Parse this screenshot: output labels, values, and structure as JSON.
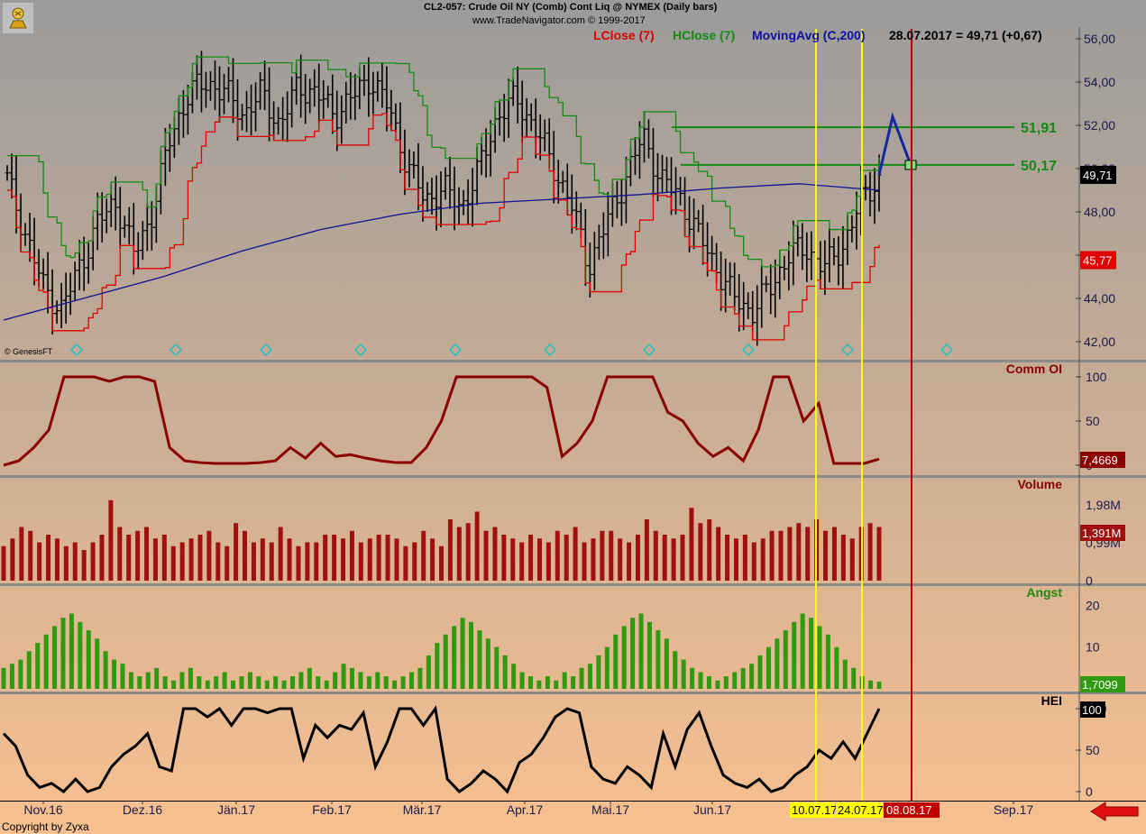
{
  "header": {
    "title": "CL2-057:  Crude Oil NY (Comb) Cont Liq @ NYMEX  (Daily bars)",
    "copyright": "www.TradeNavigator.com © 1999-2017",
    "quote": "28.07.2017 = 49,71 (+0,67)"
  },
  "legend": {
    "lclose": "LClose (7)",
    "hclose": "HClose (7)",
    "ma": "MovingAvg (C,200)"
  },
  "footer": {
    "credit": "Copyright by Zyxa",
    "genesis": "© GenesisFT"
  },
  "colors": {
    "background_top": "#9b9b9b",
    "background_bottom": "#f8c090",
    "price_bars": "#000000",
    "lclose": "#e00000",
    "hclose": "#138a13",
    "moving_avg": "#101090",
    "comm_oi": "#8b0000",
    "volume": "#a01010",
    "angst": "#2f9a10",
    "hei": "#000000",
    "marker_line": "#ffff00",
    "target_line": "#c00000",
    "projection": "#1428a0"
  },
  "chart_data": [
    {
      "type": "ohlc",
      "panel": "price",
      "ylim": [
        41.5,
        57
      ],
      "y_ticks": [
        "56,00",
        "54,00",
        "52,00",
        "50,00",
        "48,00",
        "46,00",
        "44,00",
        "42,00"
      ],
      "x_tick_labels": [
        "Nov.16",
        "Dez.16",
        "Jän.17",
        "Feb.17",
        "Mär.17",
        "Apr.17",
        "Mai.17",
        "Jun.17",
        "Sep.17"
      ],
      "date_markers": [
        "10.07.17",
        "24.07.17"
      ],
      "target_date": "08.08.17",
      "annotations": [
        {
          "label": "51,91",
          "value": 51.91
        },
        {
          "label": "50,17",
          "value": 50.17
        }
      ],
      "last_value_labels": {
        "close": "49,71",
        "lclose": "45,77"
      },
      "close_anchors": [
        49.5,
        47,
        44.5,
        43.5,
        45.5,
        47.5,
        48.5,
        46,
        48,
        51.5,
        53.5,
        54,
        53.5,
        52.5,
        53.5,
        52,
        53.8,
        53.5,
        52.5,
        53.3,
        54.2,
        52.8,
        50.2,
        48.5,
        49.1,
        48.2,
        50,
        52.5,
        53.2,
        52,
        50.2,
        48.5,
        45.5,
        47.5,
        49.5,
        51.5,
        49.5,
        48.7,
        47,
        45.5,
        44,
        43.4,
        44.5,
        46,
        46.3,
        45.4,
        46.4,
        48.5,
        49.7
      ],
      "series": [
        {
          "name": "LClose (7)",
          "color": "#e00000"
        },
        {
          "name": "HClose (7)",
          "color": "#138a13"
        },
        {
          "name": "MovingAvg (C,200)",
          "color": "#101090",
          "anchors": [
            43,
            44,
            45,
            46.2,
            47.2,
            47.9,
            48.4,
            48.6,
            48.8,
            49.1,
            49.3,
            49.0
          ]
        }
      ]
    },
    {
      "type": "line",
      "panel": "comm_oi",
      "name": "Comm OI",
      "ylim": [
        0,
        100
      ],
      "y_ticks": [
        "100",
        "50",
        "0"
      ],
      "last_value": "7,4669",
      "values": [
        0,
        5,
        20,
        40,
        100,
        100,
        100,
        95,
        100,
        100,
        95,
        20,
        5,
        3,
        2,
        2,
        2,
        3,
        5,
        20,
        8,
        25,
        10,
        12,
        8,
        5,
        3,
        3,
        20,
        50,
        100,
        100,
        100,
        100,
        100,
        100,
        88,
        10,
        25,
        50,
        100,
        100,
        100,
        100,
        60,
        50,
        25,
        10,
        20,
        5,
        40,
        100,
        100,
        50,
        70,
        2,
        2,
        2,
        7
      ]
    },
    {
      "type": "bar",
      "panel": "volume",
      "name": "Volume",
      "ylim": [
        0,
        2.4
      ],
      "y_ticks": [
        "1,98M",
        "0,99M",
        "0"
      ],
      "last_value": "1,391M",
      "values": [
        0.9,
        1.1,
        1.4,
        1.3,
        1.0,
        1.2,
        1.1,
        0.9,
        1.0,
        0.8,
        1.0,
        1.2,
        2.1,
        1.4,
        1.2,
        1.3,
        1.4,
        1.1,
        1.2,
        0.9,
        1.0,
        1.1,
        1.2,
        1.3,
        1.0,
        0.9,
        1.5,
        1.3,
        1.0,
        1.1,
        1.0,
        1.4,
        1.1,
        0.9,
        1.0,
        1.0,
        1.2,
        1.2,
        1.1,
        1.3,
        1.0,
        1.1,
        1.2,
        1.2,
        1.1,
        0.9,
        1.0,
        1.3,
        1.1,
        0.9,
        1.6,
        1.4,
        1.5,
        1.8,
        1.3,
        1.4,
        1.2,
        1.1,
        1.0,
        1.2,
        1.1,
        1.0,
        1.3,
        1.2,
        1.4,
        1.0,
        1.1,
        1.3,
        1.3,
        1.1,
        1.0,
        1.2,
        1.6,
        1.3,
        1.2,
        1.1,
        1.2,
        1.9,
        1.5,
        1.6,
        1.4,
        1.2,
        1.1,
        1.2,
        1.0,
        1.1,
        1.3,
        1.3,
        1.4,
        1.5,
        1.4,
        1.6,
        1.3,
        1.4,
        1.2,
        1.1,
        1.4,
        1.5,
        1.4
      ]
    },
    {
      "type": "bar",
      "panel": "angst",
      "name": "Angst",
      "ylim": [
        0,
        22
      ],
      "y_ticks": [
        "20",
        "10"
      ],
      "last_value": "1,7099",
      "values": [
        5,
        6,
        7,
        9,
        11,
        13,
        15,
        17,
        18,
        16,
        14,
        12,
        9,
        7,
        6,
        4,
        3,
        4,
        5,
        3,
        2,
        4,
        5,
        3,
        2,
        3,
        4,
        2,
        3,
        4,
        3,
        2,
        3,
        2,
        3,
        4,
        5,
        3,
        2,
        4,
        6,
        5,
        4,
        3,
        4,
        3,
        2,
        3,
        4,
        5,
        8,
        11,
        13,
        15,
        17,
        16,
        14,
        12,
        10,
        8,
        6,
        4,
        3,
        2,
        3,
        2,
        4,
        3,
        5,
        6,
        8,
        10,
        13,
        15,
        17,
        18,
        16,
        14,
        12,
        9,
        7,
        5,
        4,
        3,
        2,
        3,
        4,
        5,
        6,
        8,
        10,
        12,
        14,
        16,
        18,
        17,
        15,
        13,
        10,
        7,
        5,
        3,
        2,
        1.7
      ]
    },
    {
      "type": "line",
      "panel": "hei",
      "name": "HEI",
      "ylim": [
        0,
        100
      ],
      "y_ticks": [
        "100",
        "50",
        "0"
      ],
      "last_value": "100",
      "values": [
        70,
        55,
        20,
        5,
        10,
        0,
        15,
        0,
        5,
        30,
        45,
        55,
        70,
        30,
        25,
        100,
        100,
        90,
        100,
        80,
        100,
        100,
        95,
        100,
        100,
        40,
        80,
        65,
        80,
        75,
        95,
        30,
        60,
        100,
        100,
        80,
        100,
        15,
        0,
        10,
        25,
        15,
        0,
        35,
        45,
        65,
        90,
        100,
        95,
        30,
        15,
        10,
        30,
        20,
        5,
        70,
        30,
        75,
        95,
        55,
        20,
        10,
        5,
        15,
        0,
        5,
        20,
        30,
        50,
        40,
        60,
        40,
        70,
        100
      ]
    },
    {
      "type": "projection",
      "panel": "price",
      "label": "projection",
      "values": [
        49.71,
        52.4,
        50.17
      ]
    }
  ]
}
